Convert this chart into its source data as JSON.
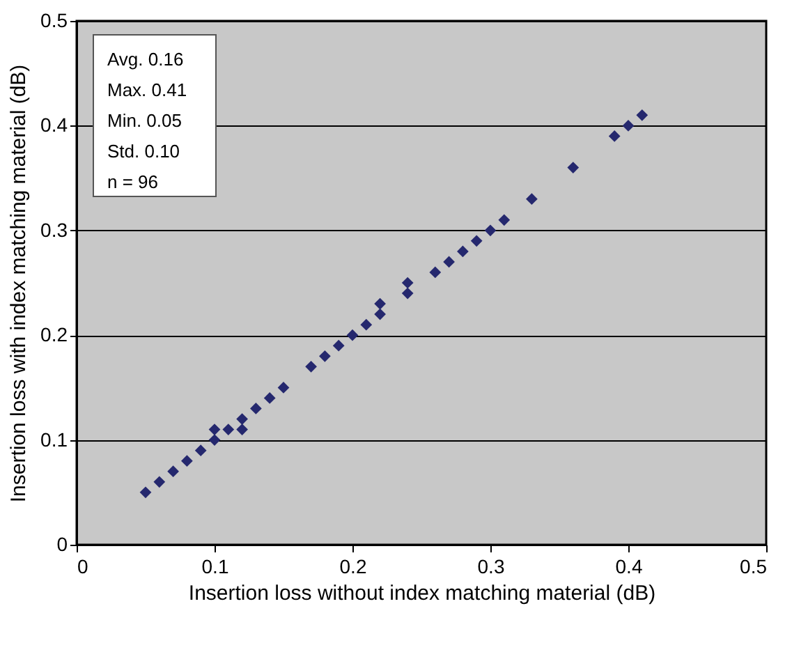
{
  "chart_data": {
    "type": "scatter",
    "xlabel": "Insertion loss without index matching material (dB)",
    "ylabel": "Insertion loss with index matching material (dB)",
    "x": [
      0.05,
      0.06,
      0.07,
      0.08,
      0.09,
      0.1,
      0.1,
      0.11,
      0.12,
      0.12,
      0.13,
      0.14,
      0.15,
      0.17,
      0.18,
      0.19,
      0.2,
      0.21,
      0.22,
      0.22,
      0.24,
      0.24,
      0.26,
      0.27,
      0.28,
      0.29,
      0.3,
      0.31,
      0.33,
      0.36,
      0.39,
      0.4,
      0.41
    ],
    "series": [
      {
        "color": "#25286e",
        "values": [
          0.05,
          0.06,
          0.07,
          0.08,
          0.09,
          0.1,
          0.11,
          0.11,
          0.11,
          0.12,
          0.13,
          0.14,
          0.15,
          0.17,
          0.18,
          0.19,
          0.2,
          0.21,
          0.22,
          0.23,
          0.24,
          0.25,
          0.26,
          0.27,
          0.28,
          0.29,
          0.3,
          0.31,
          0.33,
          0.36,
          0.39,
          0.4,
          0.41
        ]
      }
    ],
    "xlim": [
      0,
      0.5
    ],
    "ylim": [
      0,
      0.5
    ],
    "xticks": [
      0,
      0.1,
      0.2,
      0.3,
      0.4,
      0.5
    ],
    "yticks": [
      0,
      0.1,
      0.2,
      0.3,
      0.4,
      0.5
    ],
    "grid": "y",
    "marker": "diamond",
    "annotations": [
      "Avg. 0.16",
      "Max. 0.41",
      "Min. 0.05",
      "Std. 0.10",
      "n =   96"
    ]
  }
}
